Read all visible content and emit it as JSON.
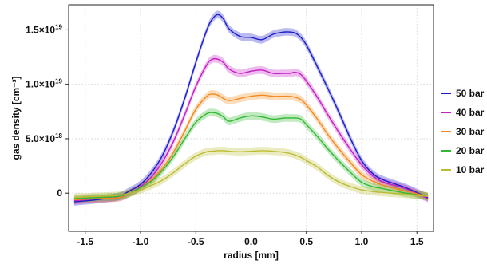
{
  "chart_data": {
    "type": "line",
    "xlabel": "radius [mm]",
    "ylabel": "gas density [cm⁻³]",
    "xlim": [
      -1.65,
      1.65
    ],
    "ylim": [
      -3.5e+18,
      1.73e+19
    ],
    "grid": true,
    "legend_position": "right",
    "x_ticks": [
      {
        "value": -1.5,
        "label": "-1.5"
      },
      {
        "value": -1.0,
        "label": "-1.0"
      },
      {
        "value": -0.5,
        "label": "-0.5"
      },
      {
        "value": 0.0,
        "label": "0.0"
      },
      {
        "value": 0.5,
        "label": "0.5"
      },
      {
        "value": 1.0,
        "label": "1.0"
      },
      {
        "value": 1.5,
        "label": "1.5"
      }
    ],
    "y_ticks": [
      {
        "value": 0,
        "mantissa": "0",
        "exponent": ""
      },
      {
        "value": 5e+18,
        "mantissa": "5.0×10",
        "exponent": "18"
      },
      {
        "value": 1e+19,
        "mantissa": "1.0×10",
        "exponent": "19"
      },
      {
        "value": 1.5e+19,
        "mantissa": "1.5×10",
        "exponent": "19"
      }
    ],
    "x": [
      -1.6,
      -1.4,
      -1.2,
      -1.1,
      -1.0,
      -0.9,
      -0.8,
      -0.7,
      -0.6,
      -0.5,
      -0.4,
      -0.35,
      -0.3,
      -0.25,
      -0.2,
      -0.1,
      0.0,
      0.1,
      0.2,
      0.3,
      0.35,
      0.4,
      0.45,
      0.5,
      0.6,
      0.7,
      0.8,
      0.9,
      1.0,
      1.1,
      1.2,
      1.4,
      1.6
    ],
    "series": [
      {
        "name": "50 bar",
        "color": "#1c1ccc",
        "values": [
          -8e+17,
          -6e+17,
          -3e+17,
          2e+17,
          8e+17,
          1.9e+18,
          3.5e+18,
          5.8e+18,
          8.7e+18,
          1.2e+19,
          1.5e+19,
          1.6e+19,
          1.64e+19,
          1.6e+19,
          1.51e+19,
          1.44e+19,
          1.43e+19,
          1.41e+19,
          1.46e+19,
          1.48e+19,
          1.48e+19,
          1.47e+19,
          1.43e+19,
          1.36e+19,
          1.16e+19,
          9.5e+18,
          7.3e+18,
          5e+18,
          3e+18,
          1.8e+18,
          1.2e+18,
          5e+17,
          -4e+17
        ]
      },
      {
        "name": "40 bar",
        "color": "#c41fc4",
        "values": [
          -7e+17,
          -5e+17,
          -4e+17,
          0.0,
          6e+17,
          1.5e+18,
          2.9e+18,
          4.8e+18,
          7.2e+18,
          9.8e+18,
          1.18e+19,
          1.23e+19,
          1.23e+19,
          1.2e+19,
          1.14e+19,
          1.1e+19,
          1.12e+19,
          1.13e+19,
          1.1e+19,
          1.1e+19,
          1.1e+19,
          1.11e+19,
          1.09e+19,
          1.03e+19,
          8.8e+18,
          7.1e+18,
          5.5e+18,
          4e+18,
          2.6e+18,
          1.6e+18,
          1e+18,
          4e+17,
          -5e+17
        ]
      },
      {
        "name": "30 bar",
        "color": "#f28a1e",
        "values": [
          -6e+17,
          -5e+17,
          -4e+17,
          0.0,
          5e+17,
          1.2e+18,
          2.3e+18,
          3.8e+18,
          5.7e+18,
          7.7e+18,
          8.9e+18,
          9.1e+18,
          9e+18,
          8.7e+18,
          8.5e+18,
          8.7e+18,
          8.9e+18,
          9e+18,
          8.9e+18,
          8.9e+18,
          8.9e+18,
          8.8e+18,
          8.6e+18,
          8.1e+18,
          6.8e+18,
          5.3e+18,
          4e+18,
          2.8e+18,
          1.7e+18,
          1.1e+18,
          7e+17,
          2e+17,
          -3e+17
        ]
      },
      {
        "name": "20 bar",
        "color": "#33b833",
        "values": [
          -5e+17,
          -4e+17,
          -3e+17,
          0.0,
          5e+17,
          1.1e+18,
          2.1e+18,
          3.4e+18,
          5e+18,
          6.5e+18,
          7.3e+18,
          7.4e+18,
          7.3e+18,
          7e+18,
          6.6e+18,
          6.9e+18,
          7.1e+18,
          7e+18,
          6.8e+18,
          6.9e+18,
          6.9e+18,
          6.9e+18,
          6.8e+18,
          6.3e+18,
          5.2e+18,
          4e+18,
          2.9e+18,
          1.9e+18,
          1e+18,
          6e+17,
          4e+17,
          0.0,
          -3e+17
        ]
      },
      {
        "name": "10 bar",
        "color": "#bcbc32",
        "values": [
          -4e+17,
          -3e+17,
          -2e+17,
          0.0,
          3e+17,
          7e+17,
          1.2e+18,
          1.9e+18,
          2.7e+18,
          3.4e+18,
          3.8e+18,
          3.85e+18,
          3.9e+18,
          3.9e+18,
          3.85e+18,
          3.8e+18,
          3.85e+18,
          3.9e+18,
          3.85e+18,
          3.75e+18,
          3.65e+18,
          3.5e+18,
          3.3e+18,
          3e+18,
          2.4e+18,
          1.6e+18,
          1e+18,
          6e+17,
          3e+17,
          1.5e+17,
          5e+16,
          -1e+17,
          -3e+17
        ]
      }
    ]
  }
}
